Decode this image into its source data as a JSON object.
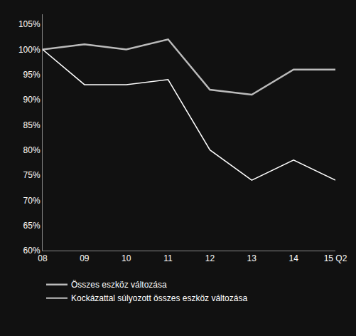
{
  "chart_data": {
    "type": "line",
    "categories": [
      "08",
      "09",
      "10",
      "11",
      "12",
      "13",
      "14",
      "15 Q2"
    ],
    "series": [
      {
        "name": "Összes eszköz változása",
        "color": "#bbbbbb",
        "values": [
          100,
          101,
          100,
          102,
          92,
          91,
          96,
          96
        ]
      },
      {
        "name": "Kockázattal súlyozott összes eszköz változása",
        "color": "#ffffff",
        "values": [
          100,
          93,
          93,
          94,
          80,
          74,
          78,
          74
        ]
      }
    ],
    "ylim": [
      60,
      107
    ],
    "yticks": [
      {
        "value": 60,
        "label": "60%"
      },
      {
        "value": 65,
        "label": "65%"
      },
      {
        "value": 70,
        "label": "70%"
      },
      {
        "value": 75,
        "label": "75%"
      },
      {
        "value": 80,
        "label": "80%"
      },
      {
        "value": 85,
        "label": "85%"
      },
      {
        "value": 90,
        "label": "90%"
      },
      {
        "value": 95,
        "label": "95%"
      },
      {
        "value": 100,
        "label": "100%"
      },
      {
        "value": 105,
        "label": "105%"
      }
    ],
    "grid": false,
    "legend": "bottom"
  }
}
